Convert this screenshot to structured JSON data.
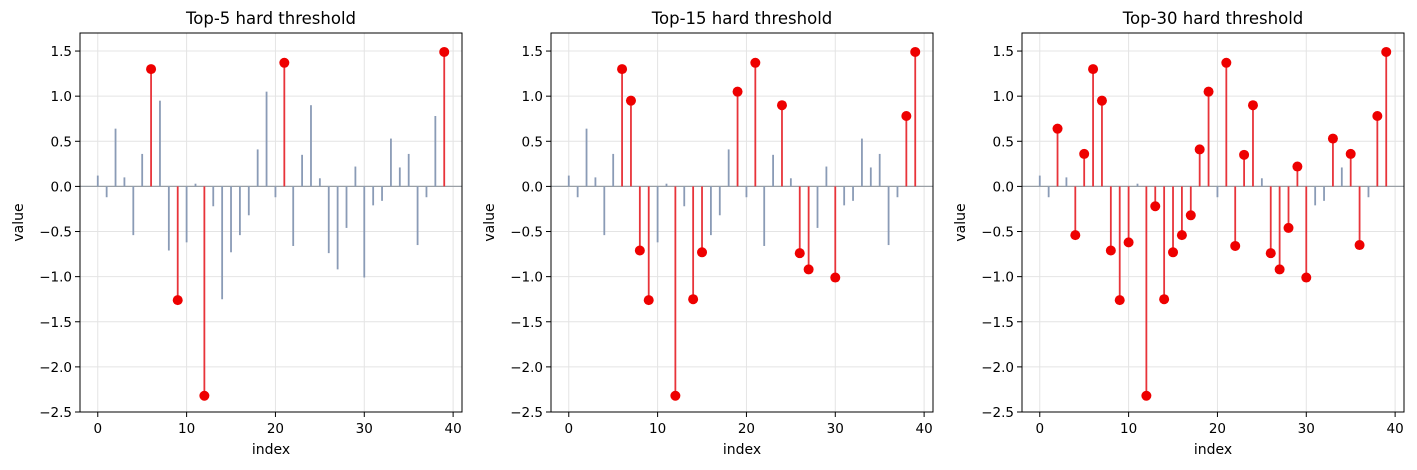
{
  "chart_data": [
    {
      "type": "stem",
      "title": "Top-5 hard threshold",
      "xlabel": "index",
      "ylabel": "value",
      "xlim": [
        -2,
        41
      ],
      "ylim": [
        -2.5,
        1.7
      ],
      "xticks": [
        0,
        10,
        20,
        30,
        40
      ],
      "yticks": [
        -2.5,
        -2.0,
        -1.5,
        -1.0,
        -0.5,
        0.0,
        0.5,
        1.0,
        1.5
      ],
      "grid": true,
      "k": 5,
      "x": [
        0,
        1,
        2,
        3,
        4,
        5,
        6,
        7,
        8,
        9,
        10,
        11,
        12,
        13,
        14,
        15,
        16,
        17,
        18,
        19,
        20,
        21,
        22,
        23,
        24,
        25,
        26,
        27,
        28,
        29,
        30,
        31,
        32,
        33,
        34,
        35,
        36,
        37,
        38,
        39
      ],
      "values": [
        0.12,
        -0.12,
        0.64,
        0.1,
        -0.54,
        0.36,
        1.3,
        0.95,
        -0.71,
        -1.26,
        -0.62,
        0.03,
        -2.32,
        -0.22,
        -1.25,
        -0.73,
        -0.54,
        -0.32,
        0.41,
        1.05,
        -0.12,
        1.37,
        -0.66,
        0.35,
        0.9,
        0.09,
        -0.74,
        -0.92,
        -0.46,
        0.22,
        -1.01,
        -0.21,
        -0.16,
        0.53,
        0.21,
        0.36,
        -0.65,
        -0.12,
        0.78,
        1.49
      ],
      "selected": [
        6,
        9,
        12,
        21,
        39
      ]
    },
    {
      "type": "stem",
      "title": "Top-15 hard threshold",
      "xlabel": "index",
      "ylabel": "value",
      "xlim": [
        -2,
        41
      ],
      "ylim": [
        -2.5,
        1.7
      ],
      "xticks": [
        0,
        10,
        20,
        30,
        40
      ],
      "yticks": [
        -2.5,
        -2.0,
        -1.5,
        -1.0,
        -0.5,
        0.0,
        0.5,
        1.0,
        1.5
      ],
      "grid": true,
      "k": 15,
      "x": [
        0,
        1,
        2,
        3,
        4,
        5,
        6,
        7,
        8,
        9,
        10,
        11,
        12,
        13,
        14,
        15,
        16,
        17,
        18,
        19,
        20,
        21,
        22,
        23,
        24,
        25,
        26,
        27,
        28,
        29,
        30,
        31,
        32,
        33,
        34,
        35,
        36,
        37,
        38,
        39
      ],
      "values": [
        0.12,
        -0.12,
        0.64,
        0.1,
        -0.54,
        0.36,
        1.3,
        0.95,
        -0.71,
        -1.26,
        -0.62,
        0.03,
        -2.32,
        -0.22,
        -1.25,
        -0.73,
        -0.54,
        -0.32,
        0.41,
        1.05,
        -0.12,
        1.37,
        -0.66,
        0.35,
        0.9,
        0.09,
        -0.74,
        -0.92,
        -0.46,
        0.22,
        -1.01,
        -0.21,
        -0.16,
        0.53,
        0.21,
        0.36,
        -0.65,
        -0.12,
        0.78,
        1.49
      ],
      "selected": [
        6,
        7,
        8,
        9,
        12,
        14,
        15,
        19,
        21,
        24,
        26,
        27,
        30,
        38,
        39
      ]
    },
    {
      "type": "stem",
      "title": "Top-30 hard threshold",
      "xlabel": "index",
      "ylabel": "value",
      "xlim": [
        -2,
        41
      ],
      "ylim": [
        -2.5,
        1.7
      ],
      "xticks": [
        0,
        10,
        20,
        30,
        40
      ],
      "yticks": [
        -2.5,
        -2.0,
        -1.5,
        -1.0,
        -0.5,
        0.0,
        0.5,
        1.0,
        1.5
      ],
      "grid": true,
      "k": 30,
      "x": [
        0,
        1,
        2,
        3,
        4,
        5,
        6,
        7,
        8,
        9,
        10,
        11,
        12,
        13,
        14,
        15,
        16,
        17,
        18,
        19,
        20,
        21,
        22,
        23,
        24,
        25,
        26,
        27,
        28,
        29,
        30,
        31,
        32,
        33,
        34,
        35,
        36,
        37,
        38,
        39
      ],
      "values": [
        0.12,
        -0.12,
        0.64,
        0.1,
        -0.54,
        0.36,
        1.3,
        0.95,
        -0.71,
        -1.26,
        -0.62,
        0.03,
        -2.32,
        -0.22,
        -1.25,
        -0.73,
        -0.54,
        -0.32,
        0.41,
        1.05,
        -0.12,
        1.37,
        -0.66,
        0.35,
        0.9,
        0.09,
        -0.74,
        -0.92,
        -0.46,
        0.22,
        -1.01,
        -0.21,
        -0.16,
        0.53,
        0.21,
        0.36,
        -0.65,
        -0.12,
        0.78,
        1.49
      ],
      "selected": [
        2,
        4,
        5,
        6,
        7,
        8,
        9,
        10,
        12,
        13,
        14,
        15,
        16,
        17,
        18,
        19,
        21,
        22,
        23,
        24,
        26,
        27,
        28,
        29,
        30,
        33,
        35,
        36,
        38,
        39
      ]
    }
  ],
  "colors": {
    "selected": "#ee0000",
    "selected_line": "#e8343a",
    "unselected": "#8a9bb6",
    "baseline": "#9aa0a6",
    "grid": "#e4e4e4"
  }
}
